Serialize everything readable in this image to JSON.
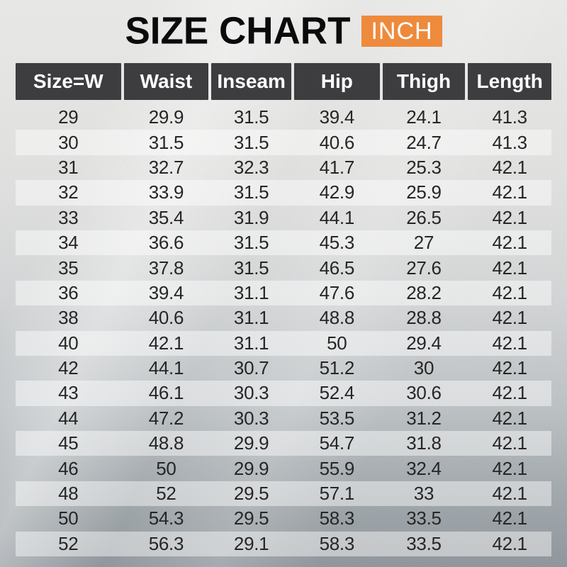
{
  "title": {
    "text": "SIZE CHART",
    "unit_badge": "INCH"
  },
  "colors": {
    "accent_orange": "#ee8a3c",
    "header_bg": "#3d3d3f",
    "header_text": "#ffffff",
    "title_color": "#0b0b0b",
    "body_text": "#262626",
    "stripe_overlay": "rgba(255,255,255,0.45)",
    "background_top": "#eaeae9",
    "background_bottom": "#8e959b"
  },
  "chart_data": {
    "type": "table",
    "title": "SIZE CHART",
    "unit": "INCH",
    "columns": [
      "Size=W",
      "Waist",
      "Inseam",
      "Hip",
      "Thigh",
      "Length"
    ],
    "rows": [
      [
        "29",
        "29.9",
        "31.5",
        "39.4",
        "24.1",
        "41.3"
      ],
      [
        "30",
        "31.5",
        "31.5",
        "40.6",
        "24.7",
        "41.3"
      ],
      [
        "31",
        "32.7",
        "32.3",
        "41.7",
        "25.3",
        "42.1"
      ],
      [
        "32",
        "33.9",
        "31.5",
        "42.9",
        "25.9",
        "42.1"
      ],
      [
        "33",
        "35.4",
        "31.9",
        "44.1",
        "26.5",
        "42.1"
      ],
      [
        "34",
        "36.6",
        "31.5",
        "45.3",
        "27",
        "42.1"
      ],
      [
        "35",
        "37.8",
        "31.5",
        "46.5",
        "27.6",
        "42.1"
      ],
      [
        "36",
        "39.4",
        "31.1",
        "47.6",
        "28.2",
        "42.1"
      ],
      [
        "38",
        "40.6",
        "31.1",
        "48.8",
        "28.8",
        "42.1"
      ],
      [
        "40",
        "42.1",
        "31.1",
        "50",
        "29.4",
        "42.1"
      ],
      [
        "42",
        "44.1",
        "30.7",
        "51.2",
        "30",
        "42.1"
      ],
      [
        "43",
        "46.1",
        "30.3",
        "52.4",
        "30.6",
        "42.1"
      ],
      [
        "44",
        "47.2",
        "30.3",
        "53.5",
        "31.2",
        "42.1"
      ],
      [
        "45",
        "48.8",
        "29.9",
        "54.7",
        "31.8",
        "42.1"
      ],
      [
        "46",
        "50",
        "29.9",
        "55.9",
        "32.4",
        "42.1"
      ],
      [
        "48",
        "52",
        "29.5",
        "57.1",
        "33",
        "42.1"
      ],
      [
        "50",
        "54.3",
        "29.5",
        "58.3",
        "33.5",
        "42.1"
      ],
      [
        "52",
        "56.3",
        "29.1",
        "58.3",
        "33.5",
        "42.1"
      ]
    ]
  }
}
